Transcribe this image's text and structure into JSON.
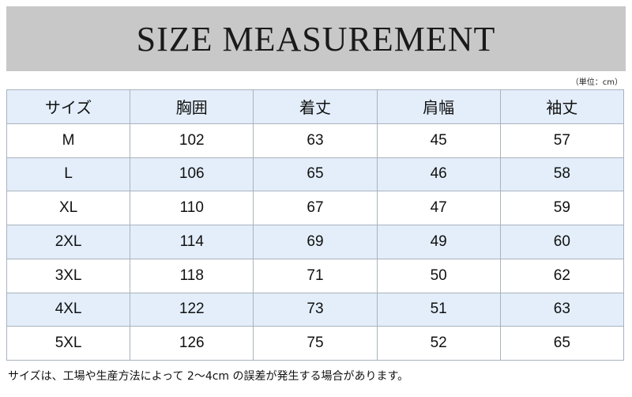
{
  "title": "SIZE MEASUREMENT",
  "unit_note": "（単位：cm）",
  "table": {
    "headers": [
      "サイズ",
      "胸囲",
      "着丈",
      "肩幅",
      "袖丈"
    ],
    "rows": [
      [
        "M",
        "102",
        "63",
        "45",
        "57"
      ],
      [
        "L",
        "106",
        "65",
        "46",
        "58"
      ],
      [
        "XL",
        "110",
        "67",
        "47",
        "59"
      ],
      [
        "2XL",
        "114",
        "69",
        "49",
        "60"
      ],
      [
        "3XL",
        "118",
        "71",
        "50",
        "62"
      ],
      [
        "4XL",
        "122",
        "73",
        "51",
        "63"
      ],
      [
        "5XL",
        "126",
        "75",
        "52",
        "65"
      ]
    ]
  },
  "footnote": "サイズは、工場や生産方法によって 2〜4cm の誤差が発生する場合があります。",
  "colors": {
    "banner": "#c8c8c8",
    "row_highlight": "#e3eefa",
    "border": "#a9b3bd"
  }
}
